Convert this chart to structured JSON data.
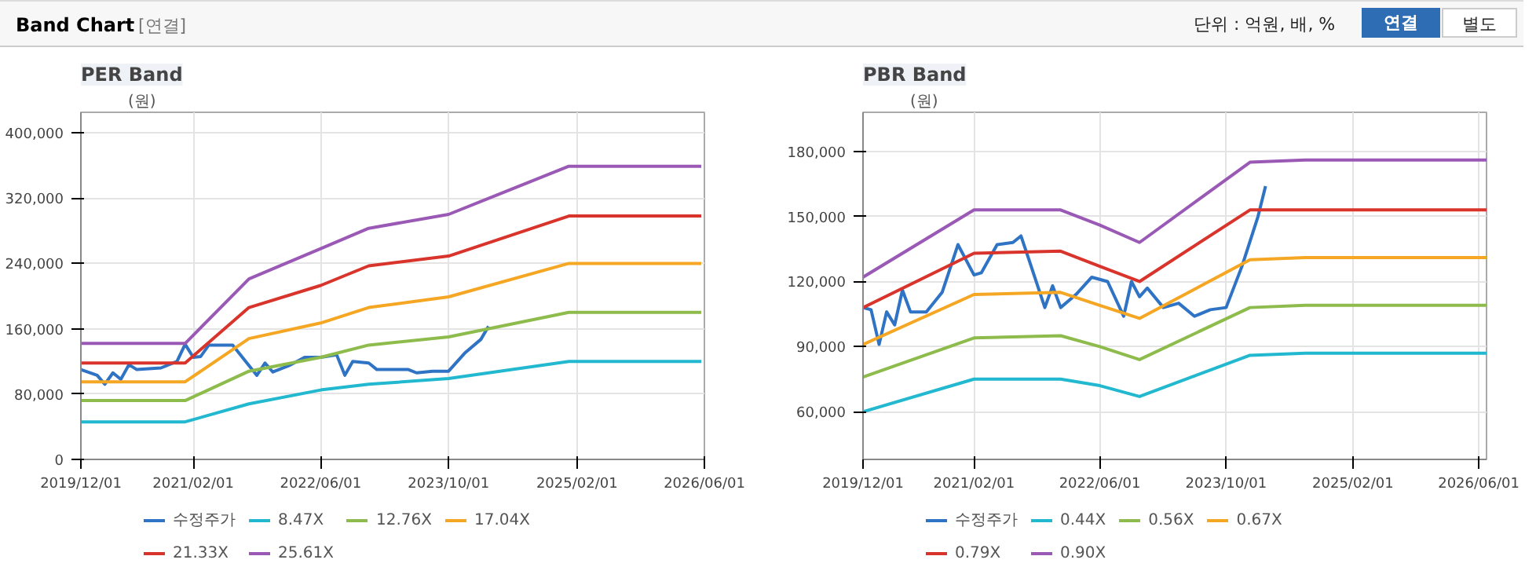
{
  "chart_data": [
    {
      "type": "line",
      "title": "PER Band",
      "ylabel": "(원)",
      "annotations": [
        "Band Chart",
        "[연결]",
        "단위 : 억원, 배, %",
        "연결",
        "별도"
      ],
      "xlim": [
        "2019-12-01",
        "2026-06-01"
      ],
      "ylim": [
        0,
        425000
      ],
      "xticks": [
        {
          "value": "2019-12-01",
          "label": "2019/12/01"
        },
        {
          "value": "2021-02-01",
          "label": "2021/02/01"
        },
        {
          "value": "2022-06-01",
          "label": "2022/06/01"
        },
        {
          "value": "2023-10-01",
          "label": "2023/10/01"
        },
        {
          "value": "2025-02-01",
          "label": "2025/02/01"
        },
        {
          "value": "2026-06-01",
          "label": "2026/06/01"
        }
      ],
      "yticks": [
        {
          "value": 0,
          "label": "0"
        },
        {
          "value": 80000,
          "label": "80,000"
        },
        {
          "value": 160000,
          "label": "160,000"
        },
        {
          "value": 240000,
          "label": "240,000"
        },
        {
          "value": 320000,
          "label": "320,000"
        },
        {
          "value": 400000,
          "label": "400,000"
        }
      ],
      "grid": true,
      "legend": "bottom",
      "marker": "none",
      "line_style": "solid",
      "series": [
        {
          "name": "수정주가",
          "color": "#2f73c4",
          "x": [
            "2019-12-01",
            "2020-02-01",
            "2020-03-01",
            "2020-04-01",
            "2020-05-01",
            "2020-06-01",
            "2020-07-01",
            "2020-10-01",
            "2020-12-01",
            "2021-01-01",
            "2021-02-01",
            "2021-03-01",
            "2021-04-01",
            "2021-07-01",
            "2021-09-01",
            "2021-10-01",
            "2021-11-01",
            "2021-12-01",
            "2022-02-01",
            "2022-04-01",
            "2022-06-01",
            "2022-08-01",
            "2022-09-01",
            "2022-10-01",
            "2022-12-01",
            "2023-01-01",
            "2023-05-01",
            "2023-06-01",
            "2023-08-01",
            "2023-10-01",
            "2023-12-01",
            "2024-02-01",
            "2024-03-01"
          ],
          "values": [
            110000,
            103000,
            92000,
            106000,
            98000,
            116000,
            110000,
            112000,
            120000,
            141000,
            125000,
            126000,
            140000,
            140000,
            115000,
            103000,
            118000,
            107000,
            115000,
            125000,
            125000,
            128000,
            103000,
            120000,
            118000,
            110000,
            110000,
            106000,
            108000,
            108000,
            130000,
            147000,
            163000
          ]
        },
        {
          "name": "8.47X",
          "color": "#22b8cf",
          "x": [
            "2019-12-01",
            "2021-01-01",
            "2021-09-01",
            "2022-06-01",
            "2022-12-01",
            "2023-10-01",
            "2025-01-01",
            "2026-05-20"
          ],
          "values": [
            46000,
            46000,
            68000,
            85000,
            92000,
            99000,
            120000,
            120000
          ]
        },
        {
          "name": "12.76X",
          "color": "#8dbb4c",
          "x": [
            "2019-12-01",
            "2021-01-01",
            "2021-09-01",
            "2022-06-01",
            "2022-12-01",
            "2023-10-01",
            "2025-01-01",
            "2026-05-20"
          ],
          "values": [
            72000,
            72000,
            108000,
            125000,
            140000,
            150000,
            180000,
            180000
          ]
        },
        {
          "name": "17.04X",
          "color": "#f5a623",
          "x": [
            "2019-12-01",
            "2021-01-01",
            "2021-09-01",
            "2022-06-01",
            "2022-12-01",
            "2023-10-01",
            "2025-01-01",
            "2026-05-20"
          ],
          "values": [
            95000,
            95000,
            148000,
            167000,
            186000,
            199000,
            240000,
            240000
          ]
        },
        {
          "name": "21.33X",
          "color": "#d9342b",
          "x": [
            "2019-12-01",
            "2021-01-01",
            "2021-09-01",
            "2022-06-01",
            "2022-12-01",
            "2023-10-01",
            "2025-01-01",
            "2026-05-20"
          ],
          "values": [
            118000,
            118000,
            186000,
            213000,
            237000,
            249000,
            298000,
            298000
          ]
        },
        {
          "name": "25.61X",
          "color": "#9b59b6",
          "x": [
            "2019-12-01",
            "2021-01-01",
            "2021-09-01",
            "2022-06-01",
            "2022-12-01",
            "2023-10-01",
            "2025-01-01",
            "2026-05-20"
          ],
          "values": [
            142000,
            142000,
            221000,
            258000,
            283000,
            300000,
            359000,
            359000
          ]
        }
      ]
    },
    {
      "type": "line",
      "title": "PBR Band",
      "ylabel": "(원)",
      "xlim": [
        "2019-12-01",
        "2026-07-01"
      ],
      "ylim": [
        38000,
        198000
      ],
      "xticks": [
        {
          "value": "2019-12-01",
          "label": "2019/12/01"
        },
        {
          "value": "2021-02-01",
          "label": "2021/02/01"
        },
        {
          "value": "2022-06-01",
          "label": "2022/06/01"
        },
        {
          "value": "2023-10-01",
          "label": "2023/10/01"
        },
        {
          "value": "2025-02-01",
          "label": "2025/02/01"
        },
        {
          "value": "2026-06-01",
          "label": "2026/06/01"
        }
      ],
      "yticks": [
        {
          "value": 60000,
          "label": "60,000"
        },
        {
          "value": 90000,
          "label": "90,000"
        },
        {
          "value": 120000,
          "label": "120,000"
        },
        {
          "value": 150000,
          "label": "150,000"
        },
        {
          "value": 180000,
          "label": "180,000"
        }
      ],
      "grid": true,
      "legend": "bottom",
      "marker": "none",
      "line_style": "solid",
      "series": [
        {
          "name": "수정주가",
          "color": "#2f73c4",
          "x": [
            "2019-12-01",
            "2020-01-01",
            "2020-02-01",
            "2020-03-01",
            "2020-04-01",
            "2020-05-01",
            "2020-06-01",
            "2020-08-01",
            "2020-10-01",
            "2020-12-01",
            "2021-02-01",
            "2021-03-01",
            "2021-05-01",
            "2021-07-01",
            "2021-08-01",
            "2021-09-01",
            "2021-11-01",
            "2021-12-01",
            "2022-01-01",
            "2022-03-01",
            "2022-05-01",
            "2022-07-01",
            "2022-09-01",
            "2022-10-01",
            "2022-11-01",
            "2022-12-01",
            "2023-02-01",
            "2023-04-01",
            "2023-06-01",
            "2023-08-01",
            "2023-10-01",
            "2023-12-01",
            "2024-02-01",
            "2024-03-01"
          ],
          "values": [
            108000,
            107000,
            91000,
            106000,
            100000,
            116000,
            106000,
            106000,
            115000,
            137000,
            123000,
            124000,
            137000,
            138000,
            141000,
            130000,
            108000,
            118000,
            108000,
            114000,
            122000,
            120000,
            104000,
            120000,
            113000,
            117000,
            108000,
            110000,
            104000,
            107000,
            108000,
            127000,
            150000,
            164000
          ]
        },
        {
          "name": "0.44X",
          "color": "#22b8cf",
          "x": [
            "2019-12-01",
            "2021-02-01",
            "2022-01-01",
            "2022-06-01",
            "2022-11-01",
            "2024-01-01",
            "2024-08-01",
            "2026-07-01"
          ],
          "values": [
            60000,
            75000,
            75000,
            72000,
            67000,
            86000,
            87000,
            87000
          ]
        },
        {
          "name": "0.56X",
          "color": "#8dbb4c",
          "x": [
            "2019-12-01",
            "2021-02-01",
            "2022-01-01",
            "2022-06-01",
            "2022-11-01",
            "2024-01-01",
            "2024-08-01",
            "2026-07-01"
          ],
          "values": [
            76000,
            94000,
            95000,
            90000,
            84000,
            108000,
            109000,
            109000
          ]
        },
        {
          "name": "0.67X",
          "color": "#f5a623",
          "x": [
            "2019-12-01",
            "2021-02-01",
            "2022-01-01",
            "2022-06-01",
            "2022-11-01",
            "2024-01-01",
            "2024-08-01",
            "2026-07-01"
          ],
          "values": [
            91000,
            114000,
            115000,
            109000,
            103000,
            130000,
            131000,
            131000
          ]
        },
        {
          "name": "0.79X",
          "color": "#d9342b",
          "x": [
            "2019-12-01",
            "2021-02-01",
            "2022-01-01",
            "2022-06-01",
            "2022-11-01",
            "2024-01-01",
            "2024-08-01",
            "2026-07-01"
          ],
          "values": [
            108000,
            133000,
            134000,
            127000,
            120000,
            153000,
            153000,
            153000
          ]
        },
        {
          "name": "0.90X",
          "color": "#9b59b6",
          "x": [
            "2019-12-01",
            "2021-02-01",
            "2022-01-01",
            "2022-06-01",
            "2022-11-01",
            "2024-01-01",
            "2024-08-01",
            "2026-07-01"
          ],
          "values": [
            122000,
            153000,
            153000,
            146000,
            138000,
            175000,
            176000,
            176000
          ]
        }
      ]
    }
  ]
}
